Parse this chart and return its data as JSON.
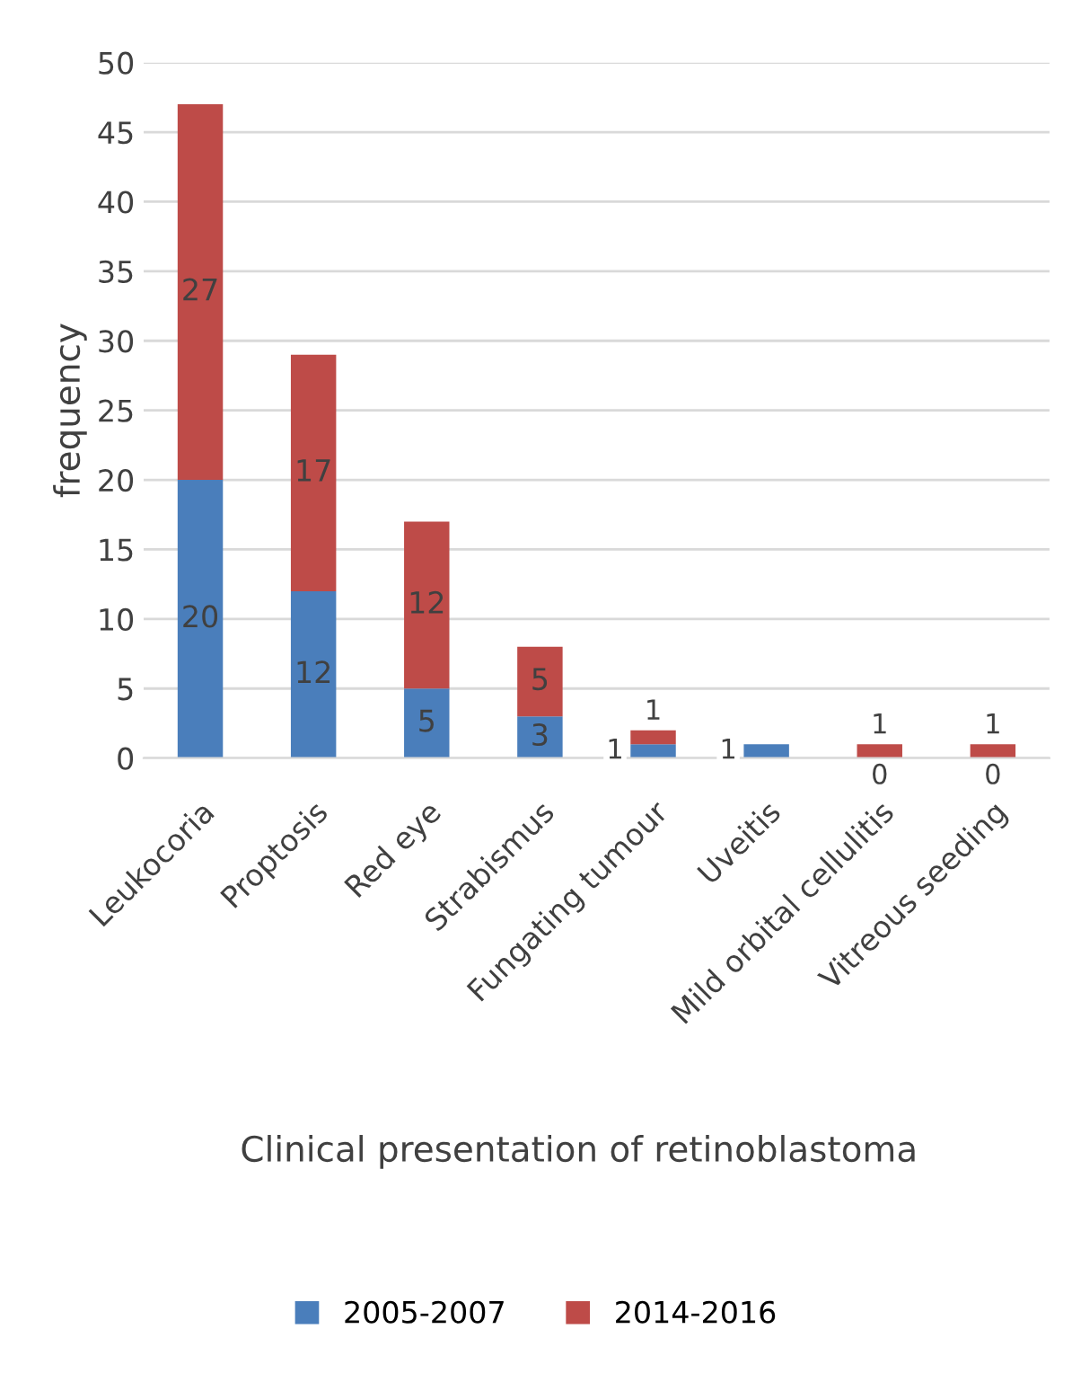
{
  "chart_data": {
    "type": "bar",
    "stacked": true,
    "xlabel": "Clinical presentation of retinoblastoma",
    "ylabel": "frequency",
    "categories": [
      "Leukocoria",
      "Proptosis",
      "Red eye",
      "Strabismus",
      "Fungating tumour",
      "Uveitis",
      "Mild orbital cellulitis",
      "Vitreous seeding"
    ],
    "series": [
      {
        "name": "2005-2007",
        "color": "#4a7ebb",
        "values": [
          20,
          12,
          5,
          3,
          1,
          1,
          0,
          0
        ],
        "value_labels": [
          "20",
          "12",
          "5",
          "3",
          "1",
          "1",
          "0",
          "0"
        ]
      },
      {
        "name": "2014-2016",
        "color": "#be4b48",
        "values": [
          27,
          17,
          12,
          5,
          1,
          null,
          1,
          1
        ],
        "value_labels": [
          "27",
          "17",
          "12",
          "5",
          "1",
          null,
          "1",
          "1"
        ]
      }
    ],
    "ylim": [
      0,
      50
    ],
    "yticks": [
      0,
      5,
      10,
      15,
      20,
      25,
      30,
      35,
      40,
      45,
      50
    ],
    "grid": "y",
    "legend": "bottom"
  }
}
